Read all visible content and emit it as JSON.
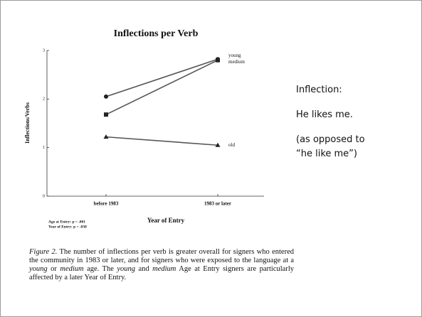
{
  "chart_data": {
    "type": "line",
    "title": "Inflections per Verb",
    "categories": [
      "before 1983",
      "1983 or later"
    ],
    "series": [
      {
        "name": "young",
        "marker": "circle",
        "color": "#222222",
        "values": [
          2.05,
          2.82
        ]
      },
      {
        "name": "medium",
        "marker": "square",
        "color": "#222222",
        "values": [
          1.68,
          2.8
        ]
      },
      {
        "name": "old",
        "marker": "triangle",
        "color": "#222222",
        "values": [
          1.22,
          1.05
        ]
      }
    ],
    "ylim": [
      0,
      3
    ],
    "yticks": [
      0,
      1,
      2,
      3
    ],
    "x_label": "Year of Entry",
    "y_label": "Inflections/Verbs",
    "notes": [
      "Age at Entry:  p = .001",
      "Year of Entry:  p = .038"
    ]
  },
  "caption": [
    {
      "text": "Figure 2.",
      "italic": true
    },
    {
      "text": " The number of inflections per verb is greater overall for signers who entered the community in 1983 or later, and for signers who were exposed to the language at a ",
      "italic": false
    },
    {
      "text": "young",
      "italic": true
    },
    {
      "text": " or ",
      "italic": false
    },
    {
      "text": "medium",
      "italic": true
    },
    {
      "text": " age.  The ",
      "italic": false
    },
    {
      "text": "young",
      "italic": true
    },
    {
      "text": " and ",
      "italic": false
    },
    {
      "text": "medium",
      "italic": true
    },
    {
      "text": " Age at Entry signers are particularly affected by a later Year of Entry.",
      "italic": false
    }
  ],
  "side_text": [
    "Inflection:",
    "He likes me.",
    "(as opposed to",
    "“he like me”)"
  ]
}
